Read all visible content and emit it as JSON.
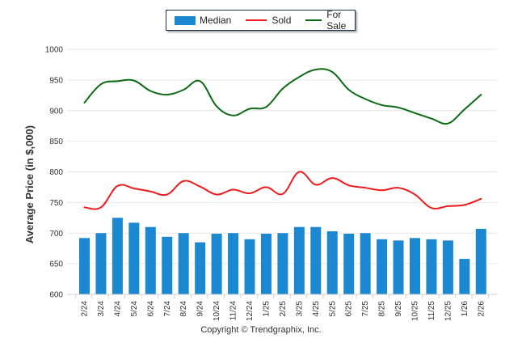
{
  "legend": {
    "items": [
      {
        "label": "Median",
        "kind": "bar",
        "color": "#1c88d1"
      },
      {
        "label": "Sold",
        "kind": "line",
        "color": "#ee1c1c"
      },
      {
        "label": "For Sale",
        "kind": "line",
        "color": "#0b6b12"
      }
    ]
  },
  "footer": {
    "copyright": "Copyright © Trendgraphix, Inc."
  },
  "chart_data": {
    "type": "bar+line",
    "title": "",
    "xlabel": "",
    "ylabel": "Average Price (in $,000)",
    "ylim": [
      600,
      1000
    ],
    "yticks": [
      600,
      650,
      700,
      750,
      800,
      850,
      900,
      950,
      1000
    ],
    "grid": true,
    "legend_position": "top-center",
    "categories": [
      "2/24",
      "3/24",
      "4/24",
      "5/24",
      "6/24",
      "7/24",
      "8/24",
      "9/24",
      "10/24",
      "11/24",
      "12/24",
      "1/25",
      "2/25",
      "3/25",
      "4/25",
      "5/25",
      "6/25",
      "7/25",
      "8/25",
      "9/25",
      "10/25",
      "11/25",
      "12/25",
      "1/26",
      "2/26"
    ],
    "series": [
      {
        "name": "Median",
        "type": "bar",
        "color": "#1c88d1",
        "values": [
          692,
          700,
          725,
          717,
          710,
          694,
          700,
          685,
          699,
          700,
          690,
          699,
          700,
          710,
          710,
          703,
          699,
          700,
          690,
          688,
          692,
          690,
          688,
          658,
          707
        ]
      },
      {
        "name": "Sold",
        "type": "line",
        "color": "#ee1c1c",
        "values": [
          742,
          742,
          777,
          773,
          768,
          763,
          785,
          776,
          763,
          771,
          765,
          775,
          764,
          800,
          779,
          790,
          778,
          774,
          770,
          774,
          763,
          741,
          744,
          746,
          756
        ]
      },
      {
        "name": "For Sale",
        "type": "line",
        "color": "#0b6b12",
        "values": [
          913,
          943,
          948,
          949,
          932,
          926,
          934,
          948,
          907,
          892,
          903,
          906,
          936,
          955,
          967,
          963,
          934,
          919,
          909,
          905,
          896,
          887,
          879,
          902,
          926
        ]
      }
    ]
  }
}
